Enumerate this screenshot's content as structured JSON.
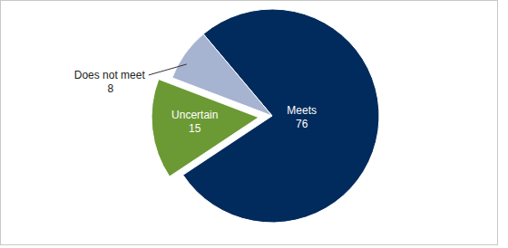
{
  "chart_data": {
    "type": "pie",
    "categories": [
      "Meets",
      "Uncertain",
      "Does not meet"
    ],
    "values": [
      76,
      15,
      8
    ],
    "colors": [
      "#002b5c",
      "#6b9a34",
      "#a6b3d1"
    ],
    "data_labels": true
  }
}
